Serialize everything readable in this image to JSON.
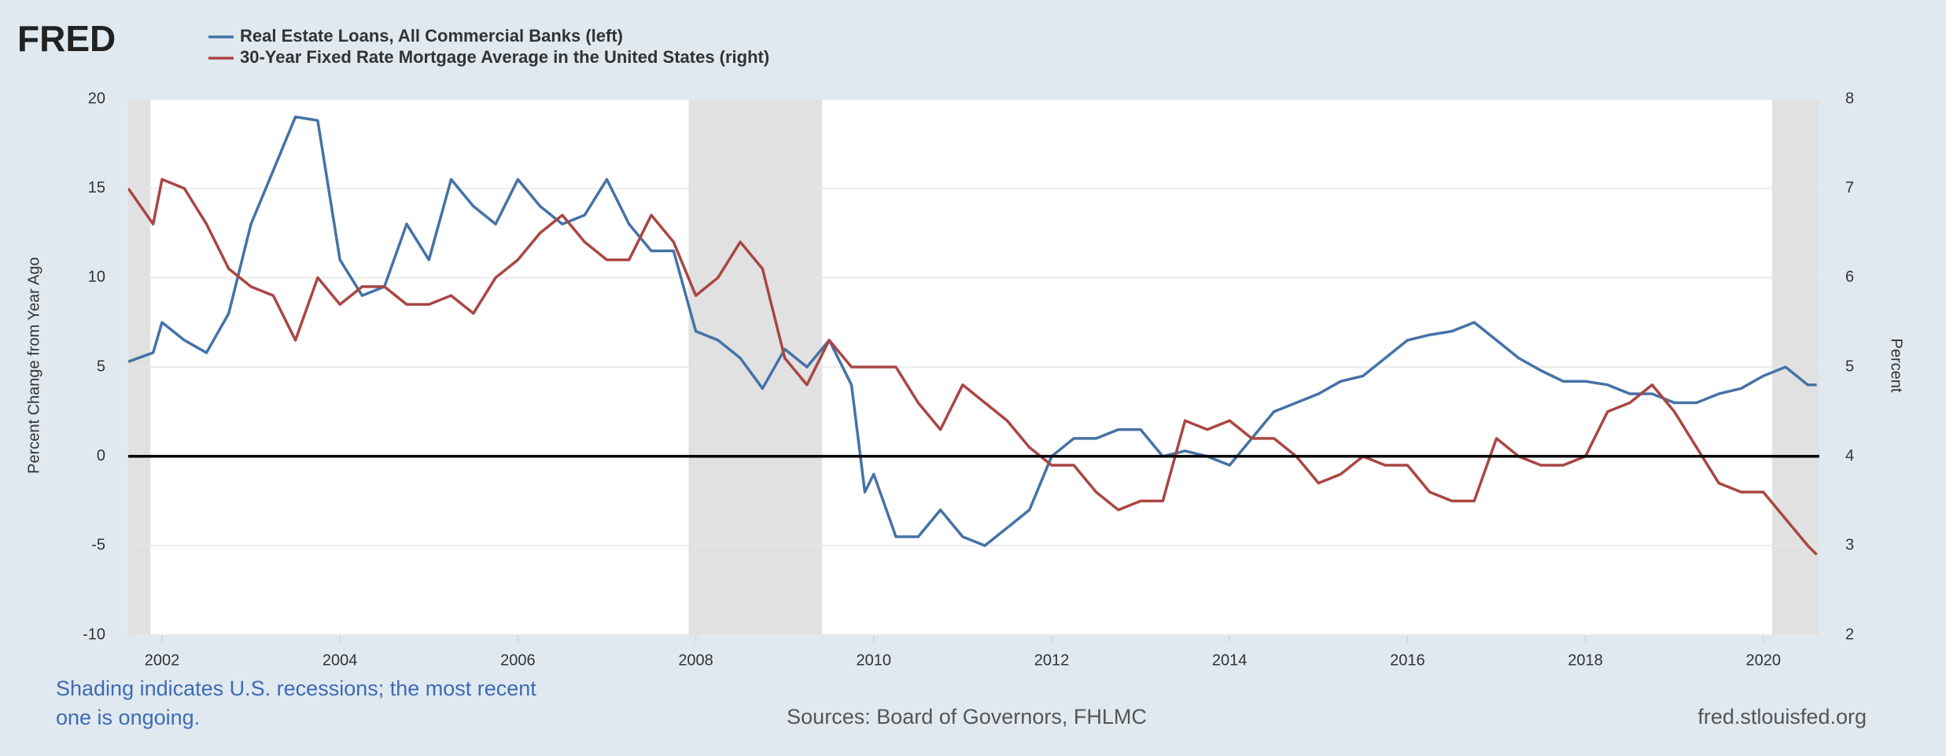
{
  "chart_data": {
    "type": "line",
    "logo": "FRED",
    "y_label": "Percent Change from Year Ago",
    "y2_label": "Percent",
    "note": "Shading indicates U.S. recessions; the most recent one is ongoing.",
    "source": "Sources: Board of Governors, FHLMC",
    "site": "fred.stlouisfed.org",
    "xlim": [
      2001.62,
      2020.63
    ],
    "xticks": [
      2002,
      2004,
      2006,
      2008,
      2010,
      2012,
      2014,
      2016,
      2018,
      2020
    ],
    "ylim": [
      -10,
      20
    ],
    "yticks": [
      -10,
      -5,
      0,
      5,
      10,
      15,
      20
    ],
    "y2lim": [
      2,
      8
    ],
    "y2ticks": [
      2,
      3,
      4,
      5,
      6,
      7,
      8
    ],
    "grid": true,
    "zero_line": true,
    "recessions": [
      {
        "start": 2001.62,
        "end": 2001.87
      },
      {
        "start": 2007.92,
        "end": 2009.42
      },
      {
        "start": 2020.1,
        "end": 2020.63
      }
    ],
    "x": [
      2001.62,
      2001.9,
      2002.0,
      2002.25,
      2002.5,
      2002.75,
      2003.0,
      2003.25,
      2003.5,
      2003.75,
      2004.0,
      2004.25,
      2004.5,
      2004.75,
      2005.0,
      2005.25,
      2005.5,
      2005.75,
      2006.0,
      2006.25,
      2006.5,
      2006.75,
      2007.0,
      2007.25,
      2007.5,
      2007.75,
      2008.0,
      2008.25,
      2008.5,
      2008.75,
      2009.0,
      2009.25,
      2009.5,
      2009.75,
      2009.9,
      2010.0,
      2010.25,
      2010.5,
      2010.75,
      2011.0,
      2011.25,
      2011.5,
      2011.75,
      2012.0,
      2012.25,
      2012.5,
      2012.75,
      2013.0,
      2013.25,
      2013.5,
      2013.75,
      2014.0,
      2014.25,
      2014.5,
      2014.75,
      2015.0,
      2015.25,
      2015.5,
      2015.75,
      2016.0,
      2016.25,
      2016.5,
      2016.75,
      2017.0,
      2017.25,
      2017.5,
      2017.75,
      2018.0,
      2018.25,
      2018.5,
      2018.75,
      2019.0,
      2019.25,
      2019.5,
      2019.75,
      2020.0,
      2020.25,
      2020.5,
      2020.6
    ],
    "series": [
      {
        "name": "Real Estate Loans, All Commercial Banks (left)",
        "color": "#4572a7",
        "axis": "y",
        "values": [
          5.3,
          5.8,
          7.5,
          6.5,
          5.8,
          8,
          13,
          16,
          19,
          18.8,
          11,
          9,
          9.5,
          13,
          11,
          15.5,
          14,
          13,
          15.5,
          14,
          13,
          13.5,
          15.5,
          13,
          11.5,
          11.5,
          7,
          6.5,
          5.5,
          3.8,
          6,
          5,
          6.5,
          4,
          -2,
          -1,
          -4.5,
          -4.5,
          -3,
          -4.5,
          -5,
          -4,
          -3,
          0,
          1,
          1,
          1.5,
          1.5,
          0,
          0.3,
          0,
          -0.5,
          1,
          2.5,
          3,
          3.5,
          4.2,
          4.5,
          5.5,
          6.5,
          6.8,
          7,
          7.5,
          6.5,
          5.5,
          4.8,
          4.2,
          4.2,
          4,
          3.5,
          3.5,
          3,
          3,
          3.5,
          3.8,
          4.5,
          5,
          4,
          4
        ]
      },
      {
        "name": "30-Year Fixed Rate Mortgage Average in the United States (right)",
        "color": "#aa4643",
        "axis": "y2",
        "values": [
          7.0,
          6.6,
          7.1,
          7.0,
          6.6,
          6.1,
          5.9,
          5.8,
          5.3,
          6.0,
          5.7,
          5.9,
          5.9,
          5.7,
          5.7,
          5.8,
          5.6,
          6.0,
          6.2,
          6.5,
          6.7,
          6.4,
          6.2,
          6.2,
          6.7,
          6.4,
          5.8,
          6.0,
          6.4,
          6.1,
          5.1,
          4.8,
          5.3,
          5.0,
          5.0,
          5.0,
          5.0,
          4.6,
          4.3,
          4.8,
          4.6,
          4.4,
          4.1,
          3.9,
          3.9,
          3.6,
          3.4,
          3.5,
          3.5,
          4.4,
          4.3,
          4.4,
          4.2,
          4.2,
          4.0,
          3.7,
          3.8,
          4.0,
          3.9,
          3.9,
          3.6,
          3.5,
          3.5,
          4.2,
          4.0,
          3.9,
          3.9,
          4.0,
          4.5,
          4.6,
          4.8,
          4.5,
          4.1,
          3.7,
          3.6,
          3.6,
          3.3,
          3.0,
          2.9
        ]
      }
    ]
  }
}
